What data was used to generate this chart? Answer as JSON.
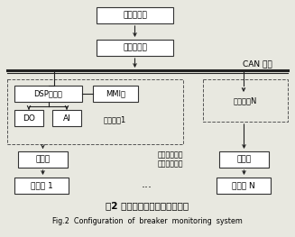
{
  "bg_color": "#e8e8e0",
  "title_zh": "图2 断路器在线监测系统的结构",
  "title_en": "Fig.2  Configuration  of  breaker  monitoring  system",
  "box_shangwei": "上位机系统",
  "box_tongxin": "通信前置机",
  "box_dsp": "DSP主控板",
  "box_mmi": "MMI板",
  "box_do": "DO",
  "box_ai": "AI",
  "box_jiance1": "监测装置1",
  "box_jianceN": "监测装置N",
  "box_chuangan1": "传感器",
  "box_chuanganN": "传感器",
  "box_duanlu1": "断路器 1",
  "box_duanluN": "断路器 N",
  "can_label": "CAN 总线",
  "measure1": "电流测量、行",
  "measure2": "程、振动测量",
  "dots": "...",
  "gray": "#888888",
  "dark": "#222222",
  "white": "#ffffff",
  "lightgray": "#dddddd"
}
